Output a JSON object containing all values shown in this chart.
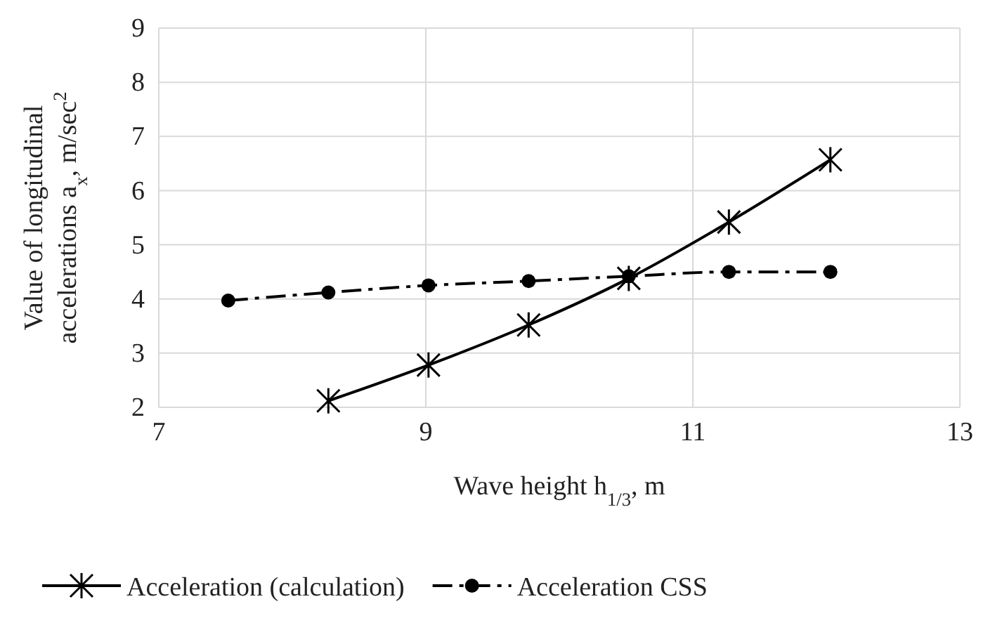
{
  "chart_data": {
    "type": "line",
    "xlabel": "Wave height h$_{1/3}$, m",
    "ylabel": "Value of longitudinal accelerations a$_{x}$, m/sec$^{2}$",
    "xlim": [
      7,
      13
    ],
    "xticks": [
      7,
      9,
      11,
      13
    ],
    "ylim": [
      2,
      9
    ],
    "yticks": [
      2,
      3,
      4,
      5,
      6,
      7,
      8,
      9
    ],
    "grid": true,
    "legend": "bottom",
    "series": [
      {
        "name": "Acceleration (calculation)",
        "color": "#000000",
        "marker": "cross",
        "line_style": "solid",
        "x": [
          8.27,
          9.02,
          9.77,
          10.52,
          11.27,
          12.03
        ],
        "values": [
          2.12,
          2.78,
          3.52,
          4.38,
          5.42,
          6.57
        ]
      },
      {
        "name": "Acceleration CSS",
        "color": "#000000",
        "marker": "circle",
        "line_style": "dashed",
        "x": [
          7.52,
          8.27,
          9.02,
          9.77,
          10.52,
          11.27,
          12.03
        ],
        "values": [
          3.97,
          4.12,
          4.25,
          4.33,
          4.42,
          4.5,
          4.5
        ]
      }
    ]
  }
}
